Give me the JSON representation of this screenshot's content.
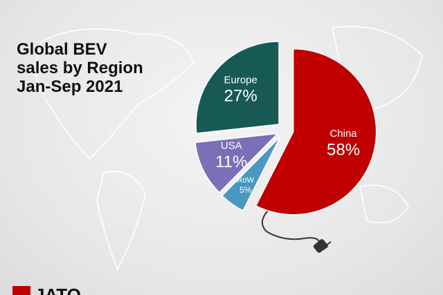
{
  "chart_data": {
    "type": "pie",
    "title": "Global BEV\nsales by Region\nJan-Sep 2021",
    "categories": [
      "China",
      "RoW",
      "USA",
      "Europe"
    ],
    "values": [
      58,
      5,
      11,
      27
    ],
    "value_labels": [
      "58%",
      "5%",
      "11%",
      "27%"
    ],
    "colors": [
      "#c00000",
      "#4a98bf",
      "#7b6fb8",
      "#175a55"
    ]
  },
  "brand": "JATO"
}
